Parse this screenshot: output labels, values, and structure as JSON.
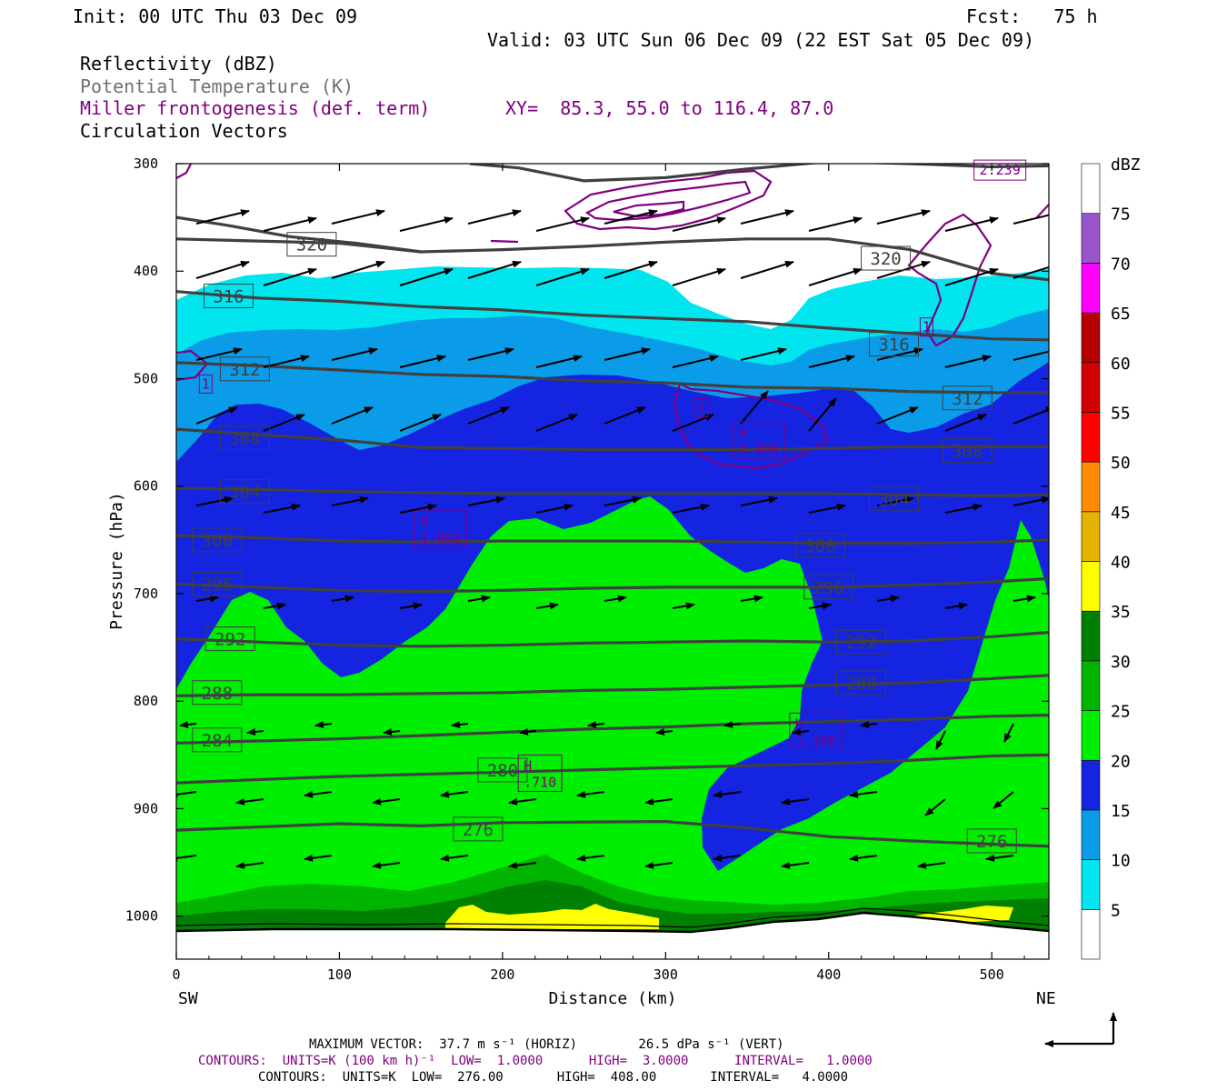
{
  "header": {
    "init": "Init: 00 UTC Thu 03 Dec 09",
    "fcst": "Fcst:   75 h",
    "valid": "Valid: 03 UTC Sun 06 Dec 09 (22 EST Sat 05 Dec 09)",
    "xy": "XY=  85.3, 55.0 to 116.4, 87.0"
  },
  "legend_lines": [
    "Reflectivity (dBZ)",
    "Potential Temperature (K)",
    "Miller frontogenesis (def. term)",
    "Circulation Vectors"
  ],
  "footer": {
    "max_vector": "MAXIMUM VECTOR:  37.7 m s⁻¹ (HORIZ)        26.5 dPa s⁻¹ (VERT)",
    "contours_fronto": "CONTOURS:  UNITS=K (100 km h)⁻¹  LOW=  1.0000      HIGH=  3.0000      INTERVAL=   1.0000",
    "contours_theta": "CONTOURS:  UNITS=K  LOW=  276.00       HIGH=  408.00       INTERVAL=   4.0000"
  },
  "chart_data": {
    "type": "cross-section",
    "xlabel": "Distance (km)",
    "ylabel": "Pressure (hPa)",
    "x_end_labels": [
      "SW",
      "NE"
    ],
    "xlim": [
      0,
      535
    ],
    "ylim": [
      1040,
      300
    ],
    "x_ticks": [
      0,
      100,
      200,
      300,
      400,
      500
    ],
    "y_ticks": [
      300,
      400,
      500,
      600,
      700,
      800,
      900,
      1000
    ],
    "colorbar": {
      "unit": "dBZ",
      "levels": [
        5,
        10,
        15,
        20,
        25,
        30,
        35,
        40,
        45,
        50,
        55,
        60,
        65,
        70,
        75
      ],
      "colors": [
        "#ffffff",
        "#00e5ee",
        "#0a9ce8",
        "#1424e0",
        "#00ee00",
        "#00b400",
        "#008000",
        "#ffff00",
        "#e6b400",
        "#ff8c00",
        "#ff0000",
        "#d40000",
        "#b40000",
        "#ff00ff",
        "#9955cc",
        "#ffffff"
      ]
    },
    "theta_contours": [
      {
        "label": "276",
        "points": [
          [
            0,
            920
          ],
          [
            50,
            917
          ],
          [
            100,
            914
          ],
          [
            150,
            916
          ],
          [
            200,
            913
          ],
          [
            300,
            912
          ],
          [
            350,
            918
          ],
          [
            400,
            926
          ],
          [
            450,
            930
          ],
          [
            500,
            933
          ],
          [
            535,
            935
          ]
        ],
        "label_positions": [
          [
            185,
            919
          ],
          [
            500,
            930
          ]
        ]
      },
      {
        "label": "280",
        "points": [
          [
            0,
            876
          ],
          [
            50,
            873
          ],
          [
            100,
            870
          ],
          [
            150,
            868
          ],
          [
            200,
            866
          ],
          [
            250,
            864
          ],
          [
            300,
            862
          ],
          [
            350,
            860
          ],
          [
            400,
            858
          ],
          [
            450,
            855
          ],
          [
            500,
            851
          ],
          [
            535,
            850
          ]
        ],
        "label_positions": [
          [
            200,
            864
          ]
        ]
      },
      {
        "label": "284",
        "points": [
          [
            0,
            839
          ],
          [
            50,
            837
          ],
          [
            100,
            835
          ],
          [
            150,
            832
          ],
          [
            200,
            829
          ],
          [
            250,
            826
          ],
          [
            300,
            824
          ],
          [
            350,
            821
          ],
          [
            400,
            819
          ],
          [
            450,
            817
          ],
          [
            500,
            814
          ],
          [
            535,
            813
          ]
        ],
        "label_positions": [
          [
            25,
            836
          ]
        ]
      },
      {
        "label": "288",
        "points": [
          [
            0,
            795
          ],
          [
            50,
            794
          ],
          [
            100,
            794
          ],
          [
            150,
            793
          ],
          [
            200,
            792
          ],
          [
            250,
            790
          ],
          [
            300,
            789
          ],
          [
            350,
            787
          ],
          [
            400,
            785
          ],
          [
            450,
            783
          ],
          [
            500,
            779
          ],
          [
            535,
            776
          ]
        ],
        "label_positions": [
          [
            25,
            792
          ],
          [
            420,
            783
          ]
        ]
      },
      {
        "label": "292",
        "points": [
          [
            0,
            742
          ],
          [
            50,
            745
          ],
          [
            100,
            748
          ],
          [
            150,
            749
          ],
          [
            200,
            748
          ],
          [
            250,
            746
          ],
          [
            300,
            745
          ],
          [
            350,
            744
          ],
          [
            400,
            745
          ],
          [
            450,
            744
          ],
          [
            500,
            740
          ],
          [
            535,
            736
          ]
        ],
        "label_positions": [
          [
            33,
            742
          ],
          [
            420,
            745
          ]
        ]
      },
      {
        "label": "296",
        "points": [
          [
            0,
            691
          ],
          [
            50,
            694
          ],
          [
            100,
            697
          ],
          [
            150,
            698
          ],
          [
            200,
            697
          ],
          [
            250,
            695
          ],
          [
            300,
            694
          ],
          [
            350,
            694
          ],
          [
            400,
            694
          ],
          [
            450,
            692
          ],
          [
            500,
            689
          ],
          [
            535,
            686
          ]
        ],
        "label_positions": [
          [
            25,
            691
          ],
          [
            400,
            694
          ]
        ]
      },
      {
        "label": "300",
        "points": [
          [
            0,
            646
          ],
          [
            50,
            648
          ],
          [
            100,
            651
          ],
          [
            150,
            652
          ],
          [
            200,
            651
          ],
          [
            250,
            651
          ],
          [
            300,
            651
          ],
          [
            350,
            652
          ],
          [
            400,
            653
          ],
          [
            450,
            653
          ],
          [
            500,
            652
          ],
          [
            535,
            650
          ]
        ],
        "label_positions": [
          [
            25,
            650
          ],
          [
            395,
            655
          ]
        ]
      },
      {
        "label": "304",
        "points": [
          [
            0,
            602
          ],
          [
            50,
            603
          ],
          [
            100,
            605
          ],
          [
            150,
            606
          ],
          [
            200,
            607
          ],
          [
            250,
            607
          ],
          [
            300,
            607
          ],
          [
            350,
            607
          ],
          [
            400,
            607
          ],
          [
            450,
            608
          ],
          [
            500,
            609
          ],
          [
            535,
            608
          ]
        ],
        "label_positions": [
          [
            42,
            605
          ],
          [
            440,
            612
          ]
        ]
      },
      {
        "label": "308",
        "points": [
          [
            0,
            547
          ],
          [
            50,
            552
          ],
          [
            100,
            557
          ],
          [
            150,
            564
          ],
          [
            200,
            565
          ],
          [
            250,
            566
          ],
          [
            300,
            566
          ],
          [
            350,
            566
          ],
          [
            400,
            565
          ],
          [
            450,
            563
          ],
          [
            500,
            563
          ],
          [
            535,
            563
          ]
        ],
        "label_positions": [
          [
            42,
            555
          ],
          [
            485,
            567
          ]
        ]
      },
      {
        "label": "312",
        "points": [
          [
            0,
            485
          ],
          [
            50,
            488
          ],
          [
            100,
            492
          ],
          [
            150,
            496
          ],
          [
            200,
            498
          ],
          [
            250,
            502
          ],
          [
            300,
            504
          ],
          [
            350,
            508
          ],
          [
            400,
            509
          ],
          [
            450,
            512
          ],
          [
            500,
            513
          ],
          [
            535,
            513
          ]
        ],
        "label_positions": [
          [
            42,
            491
          ],
          [
            485,
            518
          ]
        ]
      },
      {
        "label": "316",
        "points": [
          [
            0,
            419
          ],
          [
            50,
            425
          ],
          [
            100,
            428
          ],
          [
            150,
            433
          ],
          [
            200,
            436
          ],
          [
            250,
            441
          ],
          [
            300,
            444
          ],
          [
            350,
            447
          ],
          [
            400,
            453
          ],
          [
            450,
            458
          ],
          [
            500,
            463
          ],
          [
            535,
            464
          ]
        ],
        "label_positions": [
          [
            32,
            423
          ],
          [
            440,
            468
          ]
        ]
      },
      {
        "label": "320",
        "points": [
          [
            0,
            370
          ],
          [
            50,
            372
          ],
          [
            100,
            374
          ],
          [
            150,
            382
          ],
          [
            200,
            380
          ],
          [
            250,
            377
          ],
          [
            300,
            373
          ],
          [
            350,
            370
          ],
          [
            400,
            370
          ],
          [
            450,
            380
          ],
          [
            500,
            402
          ],
          [
            535,
            408
          ]
        ],
        "label_positions": [
          [
            83,
            375
          ],
          [
            435,
            388
          ]
        ]
      },
      {
        "label": "",
        "points": [
          [
            0,
            350
          ],
          [
            30,
            357
          ],
          [
            70,
            368
          ],
          [
            110,
            374
          ],
          [
            150,
            382
          ]
        ],
        "label_positions": []
      },
      {
        "label": "",
        "points": [
          [
            180,
            300
          ],
          [
            210,
            304
          ],
          [
            250,
            316
          ],
          [
            300,
            313
          ],
          [
            350,
            305
          ],
          [
            400,
            298
          ],
          [
            450,
            300
          ],
          [
            500,
            303
          ],
          [
            535,
            302
          ]
        ],
        "label_positions": []
      }
    ],
    "fronto_labels": [
      {
        "text": "H",
        "value": "1.089",
        "x": 162,
        "y": 640
      },
      {
        "text": "H",
        "value": "2.484",
        "x": 357,
        "y": 557
      },
      {
        "text": "H",
        "value": "1.108",
        "x": 392,
        "y": 828
      },
      {
        "text": "H",
        "value": ".710",
        "x": 223,
        "y": 867
      },
      {
        "text": "1",
        "value": "",
        "x": 18,
        "y": 505
      },
      {
        "text": "1",
        "value": "",
        "x": 322,
        "y": 527
      },
      {
        "text": "1",
        "value": "",
        "x": 460,
        "y": 452
      },
      {
        "text": "",
        "value": "2.239",
        "x": 505,
        "y": 306
      }
    ]
  }
}
